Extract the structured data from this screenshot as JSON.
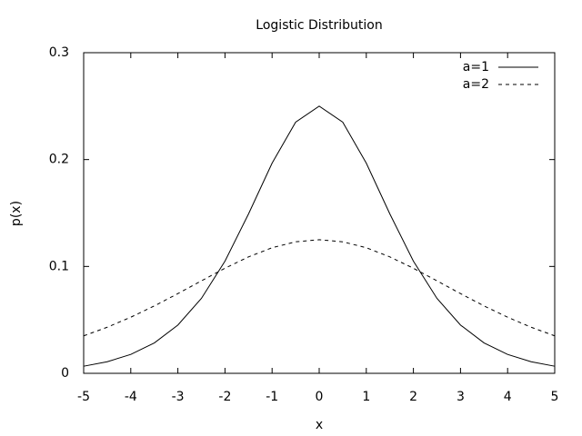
{
  "chart_data": {
    "type": "line",
    "title": "Logistic Distribution",
    "x_label": "x",
    "y_label": "p(x)",
    "x": [
      -5,
      -4.5,
      -4,
      -3.5,
      -3,
      -2.5,
      -2,
      -1.5,
      -1,
      -0.5,
      0,
      0.5,
      1,
      1.5,
      2,
      2.5,
      3,
      3.5,
      4,
      4.5,
      5
    ],
    "series": [
      {
        "name": "a=1",
        "color": "#000000",
        "dash": false,
        "values": [
          0.006648,
          0.010866,
          0.017663,
          0.028453,
          0.045177,
          0.070103,
          0.10499,
          0.14915,
          0.19661,
          0.235,
          0.25,
          0.235,
          0.19661,
          0.14915,
          0.10499,
          0.070103,
          0.045177,
          0.028453,
          0.017663,
          0.010866,
          0.006648
        ]
      },
      {
        "name": "a=2",
        "color": "#000000",
        "dash": true,
        "values": [
          0.03505,
          0.04313,
          0.0525,
          0.06306,
          0.07458,
          0.08655,
          0.09831,
          0.10895,
          0.1175,
          0.12307,
          0.125,
          0.12307,
          0.1175,
          0.10895,
          0.09831,
          0.08655,
          0.07458,
          0.06306,
          0.0525,
          0.04313,
          0.03505
        ]
      }
    ],
    "xlim": [
      -5,
      5
    ],
    "xticks": [
      -5,
      -4,
      -3,
      -2,
      -1,
      0,
      1,
      2,
      3,
      4,
      5
    ],
    "ylim": [
      0,
      0.3
    ],
    "yticks": [
      0,
      0.1,
      0.2,
      0.3
    ],
    "grid": false,
    "legend": "top-right"
  }
}
